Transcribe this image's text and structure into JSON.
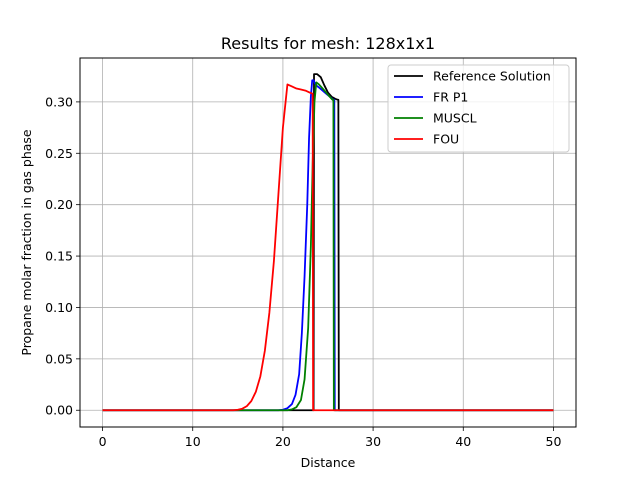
{
  "chart_data": {
    "type": "line",
    "title": "Results for mesh: 128x1x1",
    "xlabel": "Distance",
    "ylabel": "Propane molar fraction in gas phase",
    "xlim": [
      -2.5,
      52.5
    ],
    "ylim": [
      -0.0163,
      0.3427
    ],
    "xticks": [
      0,
      10,
      20,
      30,
      40,
      50
    ],
    "yticks": [
      0.0,
      0.05,
      0.1,
      0.15,
      0.2,
      0.25,
      0.3
    ],
    "xtick_labels": [
      "0",
      "10",
      "20",
      "30",
      "40",
      "50"
    ],
    "ytick_labels": [
      "0.00",
      "0.05",
      "0.10",
      "0.15",
      "0.20",
      "0.25",
      "0.30"
    ],
    "grid": true,
    "legend_position": "top-right",
    "series": [
      {
        "name": "Reference Solution",
        "color": "#000000",
        "x": [
          0,
          23.4,
          23.45,
          23.6,
          23.8,
          24.2,
          24.6,
          25.0,
          25.4,
          25.8,
          26.1,
          26.15,
          26.2,
          50
        ],
        "y": [
          0.0,
          0.0,
          0.327,
          0.327,
          0.327,
          0.324,
          0.316,
          0.309,
          0.305,
          0.303,
          0.302,
          0.302,
          0.0,
          0.0
        ]
      },
      {
        "name": "FR P1",
        "color": "#0000ff",
        "x": [
          0,
          19.5,
          20.0,
          20.5,
          21.0,
          21.4,
          21.8,
          22.1,
          22.4,
          22.7,
          22.9,
          23.1,
          23.25,
          23.4,
          23.55,
          23.7,
          24.0,
          24.4,
          24.8,
          25.2,
          25.6,
          25.7,
          25.75,
          50
        ],
        "y": [
          0.0,
          0.0,
          0.0005,
          0.002,
          0.006,
          0.015,
          0.035,
          0.075,
          0.13,
          0.2,
          0.265,
          0.305,
          0.321,
          0.321,
          0.318,
          0.316,
          0.314,
          0.311,
          0.308,
          0.305,
          0.302,
          0.302,
          0.0,
          0.0
        ]
      },
      {
        "name": "MUSCL",
        "color": "#008000",
        "x": [
          0,
          20.5,
          21.0,
          21.5,
          22.0,
          22.4,
          22.8,
          23.1,
          23.3,
          23.5,
          23.7,
          24.0,
          24.4,
          24.8,
          25.2,
          25.5,
          25.6,
          25.65,
          50
        ],
        "y": [
          0.0,
          0.0,
          0.0008,
          0.003,
          0.01,
          0.03,
          0.08,
          0.16,
          0.24,
          0.3,
          0.319,
          0.317,
          0.313,
          0.309,
          0.305,
          0.302,
          0.302,
          0.0,
          0.0
        ]
      },
      {
        "name": "FOU",
        "color": "#ff0000",
        "x": [
          0,
          14.5,
          15.0,
          15.5,
          16.0,
          16.5,
          17.0,
          17.5,
          18.0,
          18.5,
          19.0,
          19.5,
          20.0,
          20.5,
          21.0,
          21.5,
          22.0,
          22.5,
          23.0,
          23.3,
          23.35,
          50
        ],
        "y": [
          0.0,
          0.0,
          0.0005,
          0.0015,
          0.004,
          0.009,
          0.018,
          0.033,
          0.058,
          0.095,
          0.145,
          0.21,
          0.275,
          0.317,
          0.315,
          0.313,
          0.312,
          0.311,
          0.309,
          0.308,
          0.0,
          0.0
        ]
      }
    ]
  }
}
